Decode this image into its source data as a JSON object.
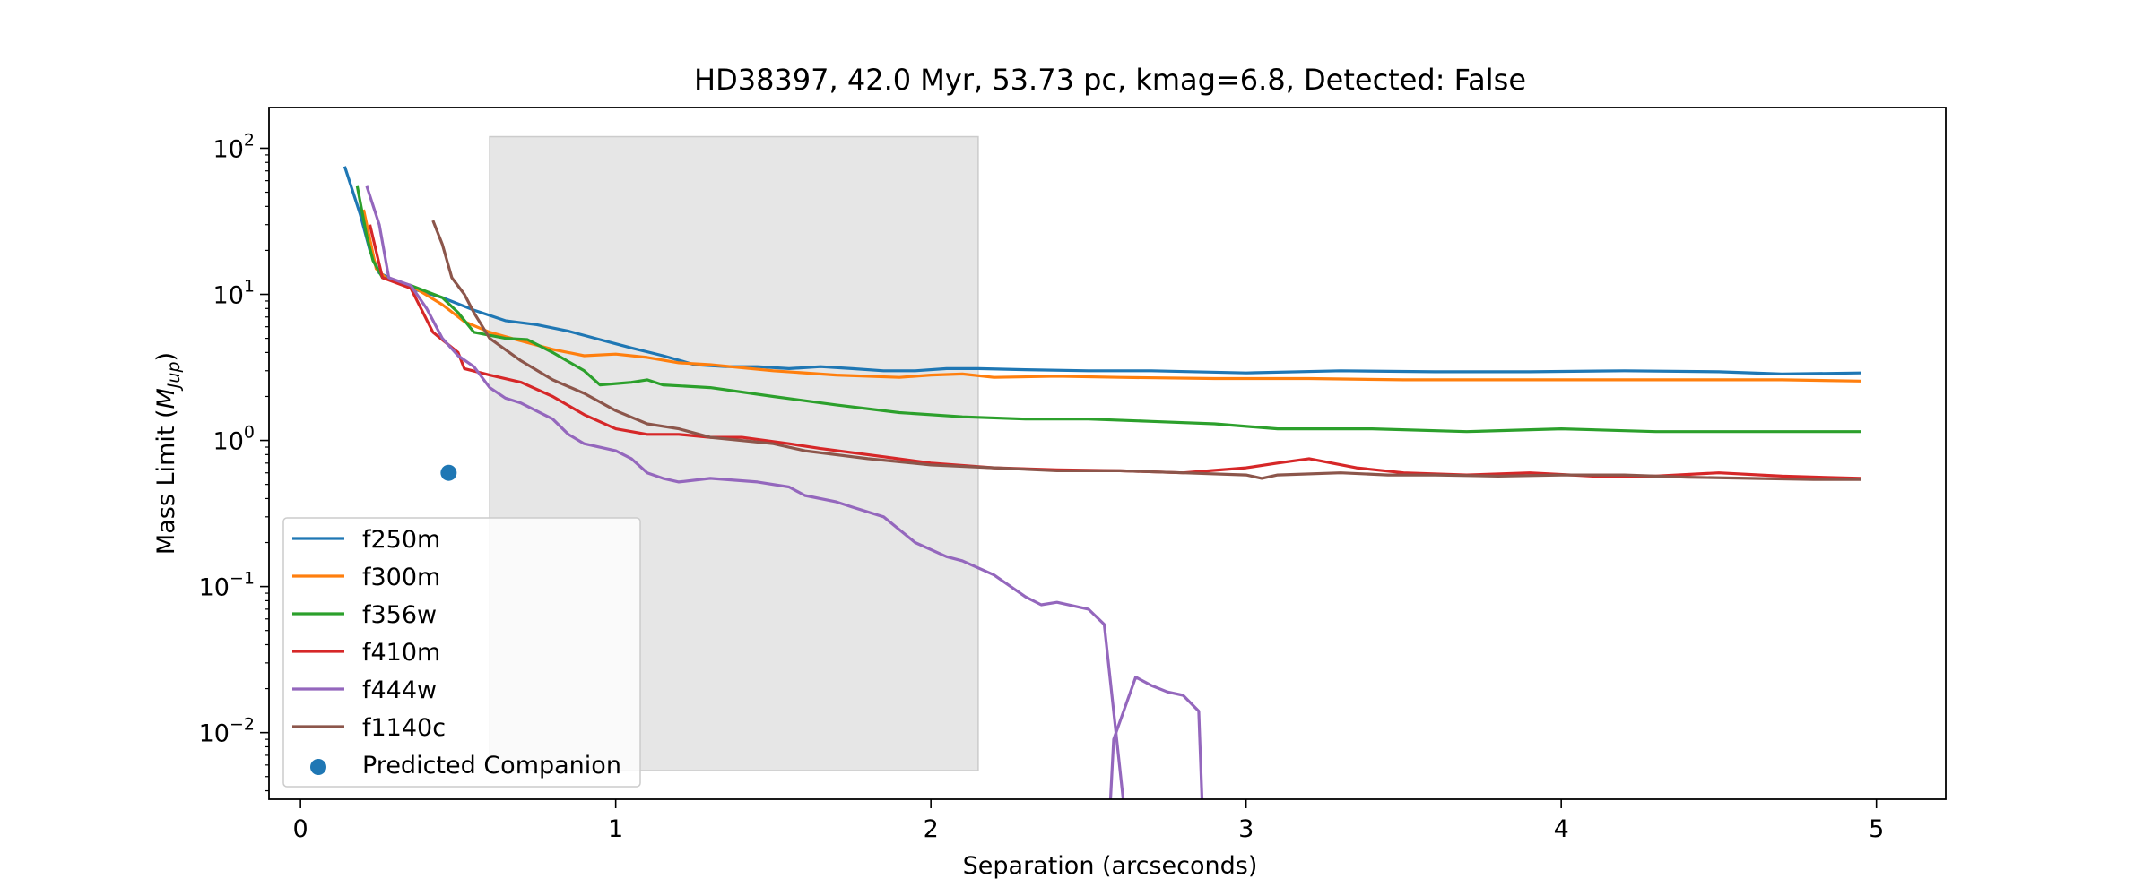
{
  "chart_data": {
    "type": "line",
    "title": "HD38397, 42.0 Myr, 53.73 pc, kmag=6.8, Detected: False",
    "xlabel": "Separation (arcseconds)",
    "ylabel": "Mass Limit (",
    "ylabel_math": "M",
    "ylabel_sub": "Jup",
    "ylabel_end": ")",
    "xlim": [
      -0.1,
      5.22
    ],
    "ylim": [
      0.0035,
      190
    ],
    "yscale": "log",
    "x_ticks": [
      {
        "v": 0,
        "label": "0"
      },
      {
        "v": 1,
        "label": "1"
      },
      {
        "v": 2,
        "label": "2"
      },
      {
        "v": 3,
        "label": "3"
      },
      {
        "v": 4,
        "label": "4"
      },
      {
        "v": 5,
        "label": "5"
      }
    ],
    "y_ticks": [
      {
        "v": 100,
        "base": "10",
        "exp": "2"
      },
      {
        "v": 10,
        "base": "10",
        "exp": "1"
      },
      {
        "v": 1,
        "base": "10",
        "exp": "0"
      },
      {
        "v": 0.1,
        "base": "10",
        "exp": "−1"
      },
      {
        "v": 0.01,
        "base": "10",
        "exp": "−2"
      }
    ],
    "shaded_region": {
      "x": [
        0.6,
        2.15
      ],
      "y": [
        0.0055,
        120
      ],
      "color": "#e6e6e6"
    },
    "legend_position": "lower-left",
    "series": [
      {
        "name": "f250m",
        "color": "#1f77b4",
        "points": [
          [
            0.14,
            75
          ],
          [
            0.19,
            35
          ],
          [
            0.22,
            20
          ],
          [
            0.25,
            14
          ],
          [
            0.35,
            11
          ],
          [
            0.45,
            9.5
          ],
          [
            0.55,
            7.8
          ],
          [
            0.65,
            6.6
          ],
          [
            0.75,
            6.2
          ],
          [
            0.85,
            5.6
          ],
          [
            0.95,
            4.9
          ],
          [
            1.05,
            4.3
          ],
          [
            1.15,
            3.8
          ],
          [
            1.25,
            3.3
          ],
          [
            1.35,
            3.2
          ],
          [
            1.45,
            3.2
          ],
          [
            1.55,
            3.1
          ],
          [
            1.65,
            3.2
          ],
          [
            1.75,
            3.1
          ],
          [
            1.85,
            3.0
          ],
          [
            1.95,
            3.0
          ],
          [
            2.05,
            3.1
          ],
          [
            2.15,
            3.1
          ],
          [
            2.3,
            3.05
          ],
          [
            2.5,
            3.0
          ],
          [
            2.7,
            3.0
          ],
          [
            3.0,
            2.9
          ],
          [
            3.3,
            3.0
          ],
          [
            3.6,
            2.95
          ],
          [
            3.9,
            2.95
          ],
          [
            4.2,
            3.0
          ],
          [
            4.5,
            2.95
          ],
          [
            4.7,
            2.85
          ],
          [
            4.95,
            2.9
          ]
        ]
      },
      {
        "name": "f300m",
        "color": "#ff7f0e",
        "points": [
          [
            0.2,
            38
          ],
          [
            0.24,
            15
          ],
          [
            0.27,
            13
          ],
          [
            0.35,
            11.5
          ],
          [
            0.45,
            8.5
          ],
          [
            0.52,
            6.5
          ],
          [
            0.6,
            5.5
          ],
          [
            0.7,
            4.8
          ],
          [
            0.8,
            4.2
          ],
          [
            0.9,
            3.8
          ],
          [
            1.0,
            3.9
          ],
          [
            1.1,
            3.7
          ],
          [
            1.2,
            3.4
          ],
          [
            1.3,
            3.3
          ],
          [
            1.5,
            3.0
          ],
          [
            1.7,
            2.8
          ],
          [
            1.9,
            2.7
          ],
          [
            2.0,
            2.8
          ],
          [
            2.1,
            2.85
          ],
          [
            2.2,
            2.7
          ],
          [
            2.4,
            2.75
          ],
          [
            2.6,
            2.7
          ],
          [
            2.9,
            2.65
          ],
          [
            3.2,
            2.65
          ],
          [
            3.5,
            2.6
          ],
          [
            3.8,
            2.6
          ],
          [
            4.1,
            2.6
          ],
          [
            4.4,
            2.6
          ],
          [
            4.7,
            2.6
          ],
          [
            4.95,
            2.55
          ]
        ]
      },
      {
        "name": "f356w",
        "color": "#2ca02c",
        "points": [
          [
            0.18,
            55
          ],
          [
            0.21,
            25
          ],
          [
            0.23,
            17
          ],
          [
            0.26,
            13
          ],
          [
            0.35,
            11.5
          ],
          [
            0.45,
            9.5
          ],
          [
            0.5,
            7.5
          ],
          [
            0.55,
            5.5
          ],
          [
            0.65,
            5.0
          ],
          [
            0.72,
            4.9
          ],
          [
            0.8,
            4.0
          ],
          [
            0.9,
            3.0
          ],
          [
            0.95,
            2.4
          ],
          [
            1.05,
            2.5
          ],
          [
            1.1,
            2.6
          ],
          [
            1.15,
            2.4
          ],
          [
            1.3,
            2.3
          ],
          [
            1.5,
            2.0
          ],
          [
            1.7,
            1.75
          ],
          [
            1.9,
            1.55
          ],
          [
            2.1,
            1.45
          ],
          [
            2.3,
            1.4
          ],
          [
            2.5,
            1.4
          ],
          [
            2.7,
            1.35
          ],
          [
            2.9,
            1.3
          ],
          [
            3.1,
            1.2
          ],
          [
            3.4,
            1.2
          ],
          [
            3.7,
            1.15
          ],
          [
            4.0,
            1.2
          ],
          [
            4.3,
            1.15
          ],
          [
            4.6,
            1.15
          ],
          [
            4.95,
            1.15
          ]
        ]
      },
      {
        "name": "f410m",
        "color": "#d62728",
        "points": [
          [
            0.22,
            30
          ],
          [
            0.26,
            13
          ],
          [
            0.35,
            11
          ],
          [
            0.42,
            5.5
          ],
          [
            0.5,
            4.0
          ],
          [
            0.52,
            3.1
          ],
          [
            0.6,
            2.8
          ],
          [
            0.7,
            2.5
          ],
          [
            0.8,
            2.0
          ],
          [
            0.9,
            1.5
          ],
          [
            1.0,
            1.2
          ],
          [
            1.1,
            1.1
          ],
          [
            1.2,
            1.1
          ],
          [
            1.3,
            1.05
          ],
          [
            1.4,
            1.05
          ],
          [
            1.55,
            0.95
          ],
          [
            1.65,
            0.88
          ],
          [
            1.8,
            0.8
          ],
          [
            2.0,
            0.7
          ],
          [
            2.2,
            0.65
          ],
          [
            2.4,
            0.63
          ],
          [
            2.6,
            0.62
          ],
          [
            2.8,
            0.6
          ],
          [
            3.0,
            0.65
          ],
          [
            3.1,
            0.7
          ],
          [
            3.2,
            0.75
          ],
          [
            3.35,
            0.65
          ],
          [
            3.5,
            0.6
          ],
          [
            3.7,
            0.58
          ],
          [
            3.9,
            0.6
          ],
          [
            4.1,
            0.57
          ],
          [
            4.3,
            0.57
          ],
          [
            4.5,
            0.6
          ],
          [
            4.7,
            0.57
          ],
          [
            4.95,
            0.55
          ]
        ]
      },
      {
        "name": "f444w",
        "color": "#9467bd",
        "points": [
          [
            0.21,
            55
          ],
          [
            0.25,
            30
          ],
          [
            0.28,
            13
          ],
          [
            0.35,
            11.5
          ],
          [
            0.4,
            8
          ],
          [
            0.45,
            5
          ],
          [
            0.5,
            3.8
          ],
          [
            0.55,
            3.2
          ],
          [
            0.6,
            2.3
          ],
          [
            0.65,
            1.95
          ],
          [
            0.7,
            1.8
          ],
          [
            0.8,
            1.4
          ],
          [
            0.85,
            1.1
          ],
          [
            0.9,
            0.95
          ],
          [
            1.0,
            0.85
          ],
          [
            1.05,
            0.75
          ],
          [
            1.1,
            0.6
          ],
          [
            1.15,
            0.55
          ],
          [
            1.2,
            0.52
          ],
          [
            1.3,
            0.55
          ],
          [
            1.45,
            0.52
          ],
          [
            1.55,
            0.48
          ],
          [
            1.6,
            0.42
          ],
          [
            1.7,
            0.38
          ],
          [
            1.75,
            0.35
          ],
          [
            1.85,
            0.3
          ],
          [
            1.95,
            0.2
          ],
          [
            2.05,
            0.16
          ],
          [
            2.1,
            0.15
          ],
          [
            2.2,
            0.12
          ],
          [
            2.3,
            0.085
          ],
          [
            2.35,
            0.075
          ],
          [
            2.4,
            0.078
          ],
          [
            2.5,
            0.07
          ],
          [
            2.55,
            0.055
          ],
          [
            2.61,
            0.0035
          ]
        ]
      },
      {
        "name": "",
        "color": "#9467bd",
        "points": [
          [
            2.57,
            0.0035
          ],
          [
            2.58,
            0.009
          ],
          [
            2.65,
            0.024
          ],
          [
            2.7,
            0.021
          ],
          [
            2.75,
            0.019
          ],
          [
            2.8,
            0.018
          ],
          [
            2.85,
            0.014
          ],
          [
            2.86,
            0.0035
          ]
        ]
      },
      {
        "name": "f1140c",
        "color": "#8c564b",
        "points": [
          [
            0.42,
            32
          ],
          [
            0.45,
            22
          ],
          [
            0.48,
            13
          ],
          [
            0.52,
            10
          ],
          [
            0.55,
            7.5
          ],
          [
            0.6,
            5.0
          ],
          [
            0.7,
            3.5
          ],
          [
            0.8,
            2.6
          ],
          [
            0.9,
            2.1
          ],
          [
            1.0,
            1.6
          ],
          [
            1.1,
            1.3
          ],
          [
            1.2,
            1.2
          ],
          [
            1.3,
            1.05
          ],
          [
            1.4,
            1.0
          ],
          [
            1.5,
            0.95
          ],
          [
            1.6,
            0.85
          ],
          [
            1.8,
            0.75
          ],
          [
            2.0,
            0.68
          ],
          [
            2.2,
            0.65
          ],
          [
            2.4,
            0.62
          ],
          [
            2.6,
            0.62
          ],
          [
            2.8,
            0.6
          ],
          [
            3.0,
            0.58
          ],
          [
            3.05,
            0.55
          ],
          [
            3.1,
            0.58
          ],
          [
            3.3,
            0.6
          ],
          [
            3.45,
            0.58
          ],
          [
            3.6,
            0.58
          ],
          [
            3.8,
            0.57
          ],
          [
            4.0,
            0.58
          ],
          [
            4.2,
            0.58
          ],
          [
            4.4,
            0.56
          ],
          [
            4.6,
            0.55
          ],
          [
            4.8,
            0.54
          ],
          [
            4.95,
            0.54
          ]
        ]
      }
    ],
    "scatter": {
      "name": "Predicted Companion",
      "color": "#1f77b4",
      "points": [
        [
          0.47,
          0.6
        ]
      ]
    }
  }
}
